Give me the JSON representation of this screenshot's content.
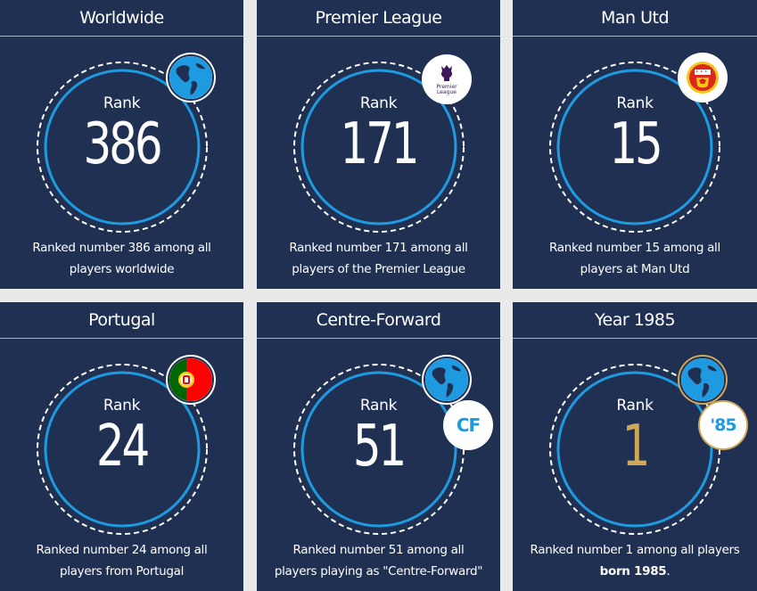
{
  "cards": [
    {
      "title": "Worldwide",
      "rank_label": "Rank",
      "rank": "386",
      "desc_pre": "Ranked number 386 among all players worldwide",
      "desc_bold": "",
      "desc_post": ""
    },
    {
      "title": "Premier League",
      "rank_label": "Rank",
      "rank": "171",
      "desc_pre": "Ranked number 171 among all players of the Premier League",
      "desc_bold": "",
      "desc_post": "",
      "logo_text": "Premier League"
    },
    {
      "title": "Man Utd",
      "rank_label": "Rank",
      "rank": "15",
      "desc_pre": "Ranked number 15 among all players at Man Utd",
      "desc_bold": "",
      "desc_post": ""
    },
    {
      "title": "Portugal",
      "rank_label": "Rank",
      "rank": "24",
      "desc_pre": "Ranked number 24 among all players from Portugal",
      "desc_bold": "",
      "desc_post": ""
    },
    {
      "title": "Centre-Forward",
      "rank_label": "Rank",
      "rank": "51",
      "desc_pre": "Ranked number 51 among all players playing as \"Centre-Forward\"",
      "desc_bold": "",
      "desc_post": "",
      "position_badge": "CF"
    },
    {
      "title": "Year 1985",
      "rank_label": "Rank",
      "rank": "1",
      "desc_pre": "Ranked number 1 among all players ",
      "desc_bold": "born 1985",
      "desc_post": ".",
      "year_badge": "'85"
    }
  ],
  "colors": {
    "card_bg": "#1f3052",
    "page_bg": "#e9e9e9",
    "ring_blue": "#1e9be0",
    "gold": "#cfa85a",
    "pl_purple": "#3d185c",
    "mu_red": "#da291c",
    "pt_green": "#006600",
    "pt_red": "#ff0000"
  },
  "icons": {
    "globe": "globe-icon",
    "premier_league": "premier-league-logo",
    "man_utd": "man-utd-crest",
    "portugal": "portugal-flag-icon"
  }
}
